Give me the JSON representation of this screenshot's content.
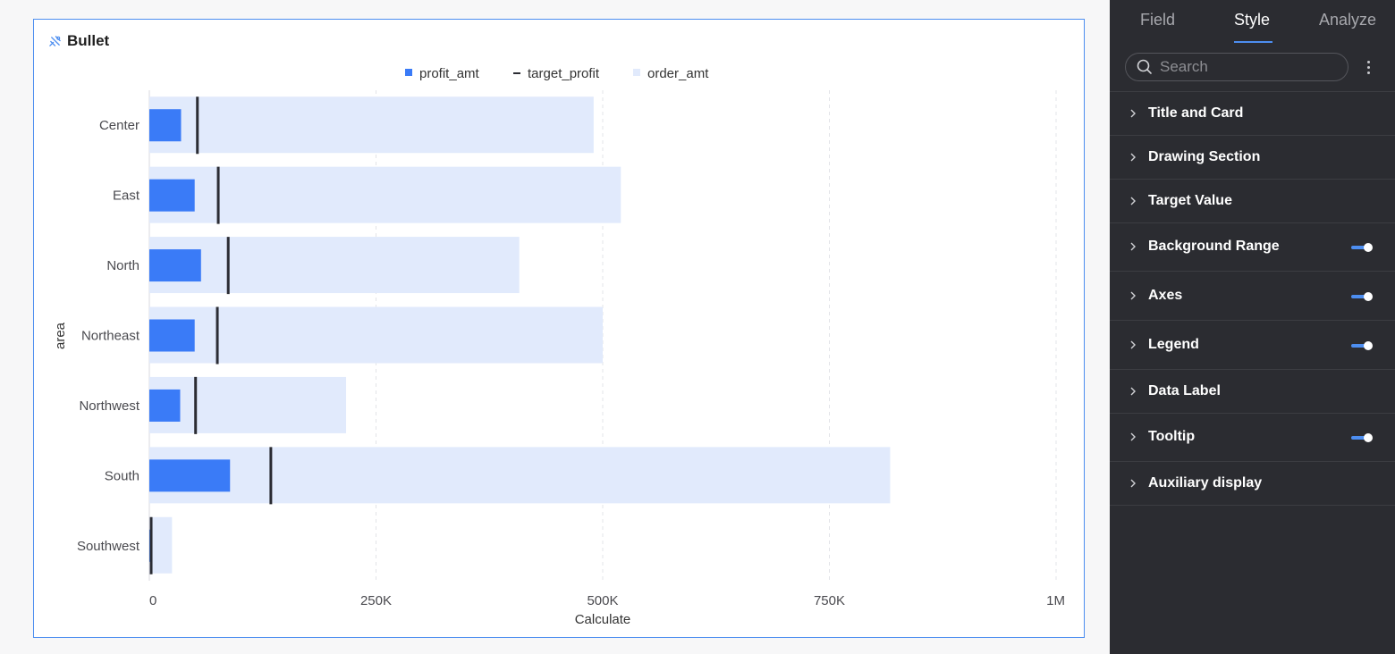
{
  "card": {
    "title": "Bullet"
  },
  "chart_data": {
    "type": "bar",
    "subtype": "bullet",
    "orientation": "horizontal",
    "title": "Bullet",
    "xlabel": "Calculate",
    "ylabel": "area",
    "xlim": [
      0,
      1000000
    ],
    "x_ticks": [
      "0",
      "250K",
      "500K",
      "750K",
      "1M"
    ],
    "x_tick_values": [
      0,
      250000,
      500000,
      750000,
      1000000
    ],
    "grid": "vertical dashed",
    "legend_position": "top-center",
    "categories": [
      "Center",
      "East",
      "North",
      "Northeast",
      "Northwest",
      "South",
      "Southwest"
    ],
    "series": [
      {
        "name": "profit_amt",
        "role": "measure",
        "color": "#3a7bf7",
        "values": [
          35000,
          50000,
          57000,
          50000,
          34000,
          89000,
          2000
        ]
      },
      {
        "name": "target_profit",
        "role": "target",
        "color": "#2b2c33",
        "values": [
          53000,
          76000,
          87000,
          75000,
          51000,
          134000,
          2000
        ]
      },
      {
        "name": "order_amt",
        "role": "range",
        "color": "#e1eafc",
        "values": [
          490000,
          520000,
          408000,
          500000,
          217000,
          817000,
          25000
        ]
      }
    ]
  },
  "panel": {
    "tabs": [
      {
        "label": "Field",
        "active": false
      },
      {
        "label": "Style",
        "active": true
      },
      {
        "label": "Analyze",
        "active": false
      }
    ],
    "search": {
      "placeholder": "Search"
    },
    "sections": [
      {
        "label": "Title and Card",
        "toggle": null
      },
      {
        "label": "Drawing Section",
        "toggle": null
      },
      {
        "label": "Target Value",
        "toggle": null
      },
      {
        "label": "Background Range",
        "toggle": true
      },
      {
        "label": "Axes",
        "toggle": true
      },
      {
        "label": "Legend",
        "toggle": true
      },
      {
        "label": "Data Label",
        "toggle": null
      },
      {
        "label": "Tooltip",
        "toggle": true
      },
      {
        "label": "Auxiliary display",
        "toggle": null
      }
    ]
  },
  "colors": {
    "accent": "#4d8ef0",
    "panel_bg": "#2b2c31",
    "range_bar": "#e1eafc",
    "measure_bar": "#3a7bf7",
    "target_mark": "#2b2c33"
  }
}
